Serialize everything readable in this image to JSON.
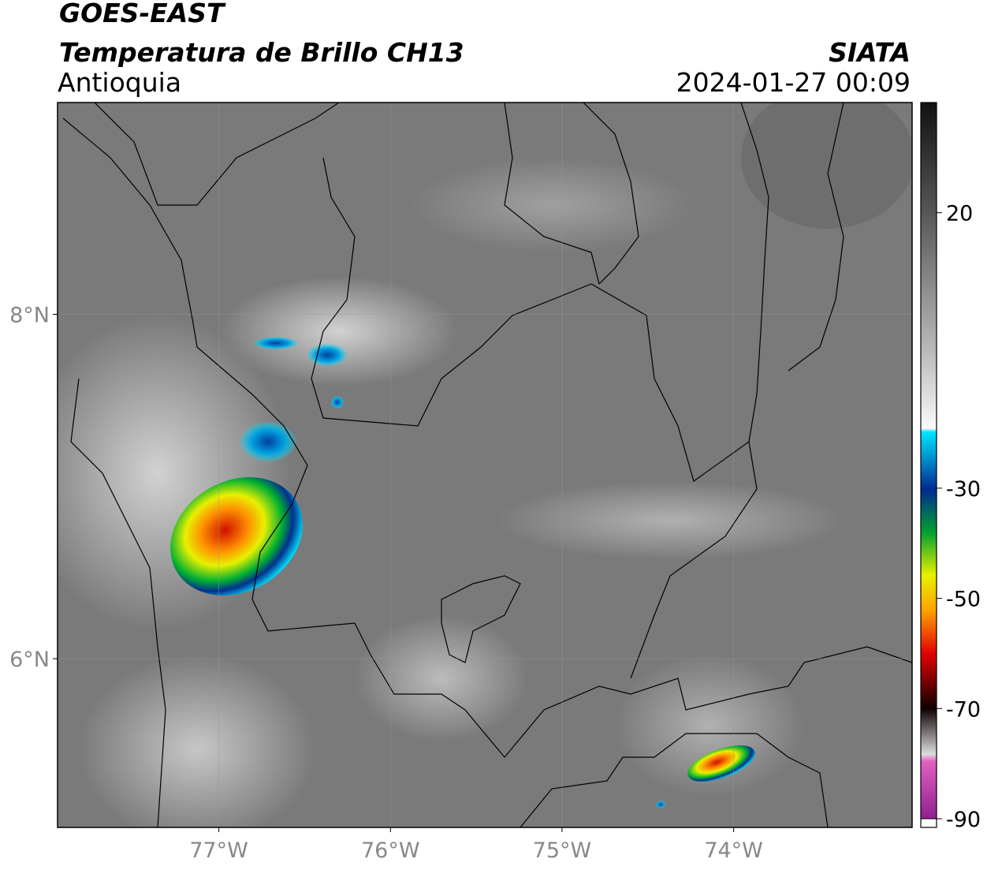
{
  "header": {
    "title": "GOES-EAST",
    "subtitle": "Temperatura de Brillo CH13",
    "region": "Antioquia",
    "source": "SIATA",
    "datetime": "2024-01-27 00:09"
  },
  "map": {
    "xlim": [
      -77.94,
      -72.96
    ],
    "ylim": [
      5.02,
      9.23
    ],
    "xticks": [
      {
        "value": -77,
        "label": "77°W"
      },
      {
        "value": -76,
        "label": "76°W"
      },
      {
        "value": -75,
        "label": "75°W"
      },
      {
        "value": -74,
        "label": "74°W"
      }
    ],
    "yticks": [
      {
        "value": 8,
        "label": "8°N"
      },
      {
        "value": 6,
        "label": "6°N"
      }
    ],
    "grid": true
  },
  "colorbar": {
    "lim": [
      -90,
      40
    ],
    "ticks": [
      20,
      -30,
      -50,
      -70,
      -90
    ]
  }
}
